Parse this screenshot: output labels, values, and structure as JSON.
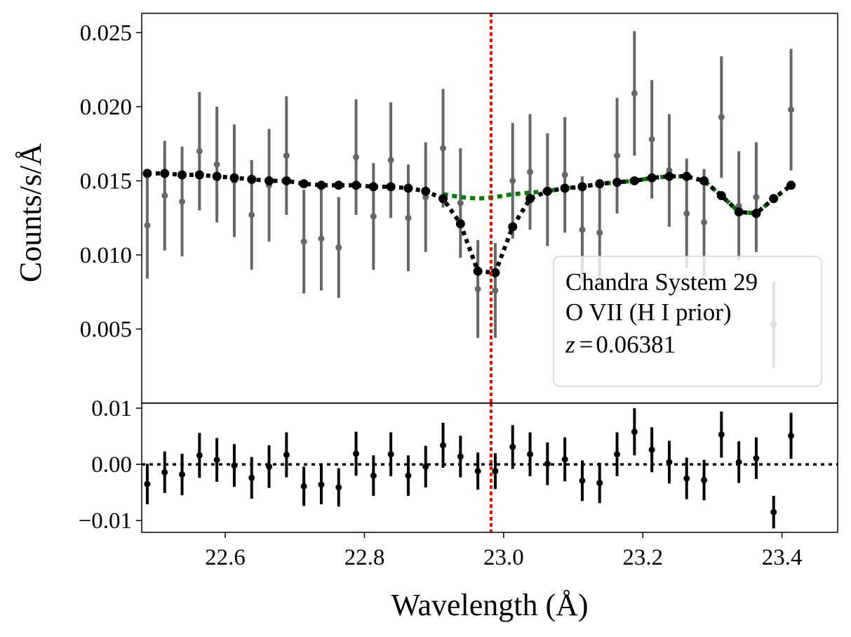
{
  "chart_data": [
    {
      "panel": "spectrum",
      "type": "scatter",
      "ylabel": "Counts/s/Å",
      "xlim": [
        22.48,
        23.48
      ],
      "ylim": [
        0.0,
        0.0263
      ],
      "yticks": [
        0.005,
        0.01,
        0.015,
        0.02,
        0.025
      ],
      "ytick_labels": [
        "0.005",
        "0.010",
        "0.015",
        "0.020",
        "0.025"
      ],
      "grid": false,
      "legend": {
        "placement": "lower-right",
        "lines": [
          "Chandra System 29",
          "O VII (H I prior)",
          "0.06381"
        ],
        "redshift_symbol": "z",
        "equals": "="
      },
      "series": [
        {
          "kind": "data-with-errors",
          "color": "#666666",
          "x": [
            22.488,
            22.513,
            22.538,
            22.563,
            22.588,
            22.613,
            22.638,
            22.663,
            22.688,
            22.713,
            22.738,
            22.763,
            22.788,
            22.813,
            22.838,
            22.863,
            22.888,
            22.913,
            22.938,
            22.963,
            22.988,
            23.013,
            23.038,
            23.063,
            23.088,
            23.113,
            23.138,
            23.163,
            23.188,
            23.213,
            23.238,
            23.263,
            23.288,
            23.313,
            23.338,
            23.363,
            23.388,
            23.413
          ],
          "y": [
            0.012,
            0.014,
            0.0136,
            0.017,
            0.0161,
            0.015,
            0.0127,
            0.0147,
            0.0167,
            0.0109,
            0.0111,
            0.0105,
            0.0166,
            0.0126,
            0.0164,
            0.0125,
            0.0139,
            0.0172,
            0.0135,
            0.0077,
            0.0076,
            0.015,
            0.0156,
            0.0144,
            0.0154,
            0.0117,
            0.0115,
            0.0167,
            0.0209,
            0.0178,
            0.0157,
            0.0128,
            0.0122,
            0.0193,
            0.0133,
            0.0139,
            0.0053,
            0.0198
          ],
          "yerr": [
            0.0036,
            0.0037,
            0.0037,
            0.004,
            0.0039,
            0.0038,
            0.0037,
            0.0038,
            0.004,
            0.0035,
            0.0035,
            0.0034,
            0.0039,
            0.0036,
            0.0039,
            0.0036,
            0.0037,
            0.004,
            0.0037,
            0.0033,
            0.0032,
            0.0039,
            0.0039,
            0.0038,
            0.0039,
            0.0036,
            0.0036,
            0.0039,
            0.0042,
            0.004,
            0.0038,
            0.0037,
            0.0036,
            0.0041,
            0.0037,
            0.0037,
            0.0029,
            0.0041
          ]
        },
        {
          "kind": "model-with-absorption",
          "style": "dotted",
          "color": "#000000",
          "x": [
            22.488,
            22.513,
            22.538,
            22.563,
            22.588,
            22.613,
            22.638,
            22.663,
            22.688,
            22.713,
            22.738,
            22.763,
            22.788,
            22.813,
            22.838,
            22.863,
            22.888,
            22.913,
            22.938,
            22.963,
            22.988,
            23.013,
            23.038,
            23.063,
            23.088,
            23.113,
            23.138,
            23.163,
            23.188,
            23.213,
            23.238,
            23.263,
            23.288,
            23.313,
            23.338,
            23.363,
            23.388,
            23.413
          ],
          "y": [
            0.0155,
            0.0155,
            0.0154,
            0.0154,
            0.0153,
            0.0152,
            0.0151,
            0.015,
            0.015,
            0.0148,
            0.0147,
            0.0147,
            0.0147,
            0.0146,
            0.0146,
            0.0145,
            0.0143,
            0.0138,
            0.0121,
            0.0089,
            0.0088,
            0.0119,
            0.0138,
            0.0143,
            0.0145,
            0.0146,
            0.0148,
            0.0149,
            0.015,
            0.0152,
            0.0153,
            0.0153,
            0.015,
            0.014,
            0.0129,
            0.0128,
            0.0138,
            0.0147
          ]
        },
        {
          "kind": "continuum-model",
          "style": "dotted",
          "color": "#008000",
          "x": [
            22.913,
            22.938,
            22.963,
            22.988,
            23.013,
            23.038,
            23.063,
            23.088,
            23.113,
            23.138,
            23.163,
            23.188,
            23.213,
            23.238,
            23.263,
            23.288,
            23.313,
            23.338,
            23.363,
            23.388,
            23.413
          ],
          "y": [
            0.0141,
            0.0139,
            0.0138,
            0.0139,
            0.0141,
            0.0142,
            0.0143,
            0.0145,
            0.0146,
            0.0148,
            0.0149,
            0.015,
            0.0152,
            0.0153,
            0.0153,
            0.015,
            0.014,
            0.0129,
            0.0128,
            0.0138,
            0.0147
          ]
        }
      ],
      "vline": {
        "x": 22.982,
        "color": "#ff0000",
        "style": "dotted"
      }
    },
    {
      "panel": "residuals",
      "type": "scatter",
      "xlabel": "Wavelength (Å)",
      "xlim": [
        22.48,
        23.48
      ],
      "xticks": [
        22.6,
        22.8,
        23.0,
        23.2,
        23.4
      ],
      "xtick_labels": [
        "22.6",
        "22.8",
        "23.0",
        "23.2",
        "23.4"
      ],
      "ylim": [
        -0.0121,
        0.0109
      ],
      "yticks": [
        0.01,
        0.0,
        -0.01
      ],
      "ytick_labels": [
        "0.01",
        "0.00",
        "−0.01"
      ],
      "grid": false,
      "series": [
        {
          "kind": "residuals-with-errors",
          "color": "#000000",
          "x": [
            22.488,
            22.513,
            22.538,
            22.563,
            22.588,
            22.613,
            22.638,
            22.663,
            22.688,
            22.713,
            22.738,
            22.763,
            22.788,
            22.813,
            22.838,
            22.863,
            22.888,
            22.913,
            22.938,
            22.963,
            22.988,
            23.013,
            23.038,
            23.063,
            23.088,
            23.113,
            23.138,
            23.163,
            23.188,
            23.213,
            23.238,
            23.263,
            23.288,
            23.313,
            23.338,
            23.363,
            23.388,
            23.413
          ],
          "y": [
            -0.0035,
            -0.0014,
            -0.0018,
            0.0016,
            0.0008,
            -0.0002,
            -0.0024,
            -0.0004,
            0.0017,
            -0.0039,
            -0.0036,
            -0.0041,
            0.0019,
            -0.002,
            0.0018,
            -0.002,
            -0.0004,
            0.0034,
            0.0014,
            -0.0012,
            -0.0012,
            0.0031,
            0.0018,
            0.0001,
            0.0009,
            -0.0029,
            -0.0033,
            0.0018,
            0.0058,
            0.0026,
            0.0004,
            -0.0025,
            -0.0028,
            0.0053,
            0.0004,
            0.0011,
            -0.0085,
            0.0051
          ],
          "yerr": [
            0.0036,
            0.0037,
            0.0037,
            0.004,
            0.0039,
            0.0038,
            0.0037,
            0.0038,
            0.004,
            0.0035,
            0.0035,
            0.0034,
            0.0039,
            0.0036,
            0.0039,
            0.0036,
            0.0037,
            0.004,
            0.0037,
            0.0033,
            0.0032,
            0.0039,
            0.0039,
            0.0038,
            0.0039,
            0.0036,
            0.0036,
            0.0039,
            0.0042,
            0.004,
            0.0038,
            0.0037,
            0.0036,
            0.0041,
            0.0037,
            0.0037,
            0.0029,
            0.0041
          ]
        }
      ],
      "hline": {
        "y": 0.0,
        "color": "#000000",
        "style": "dotted"
      },
      "vline": {
        "x": 22.982,
        "color": "#ff0000",
        "style": "dotted"
      }
    }
  ]
}
